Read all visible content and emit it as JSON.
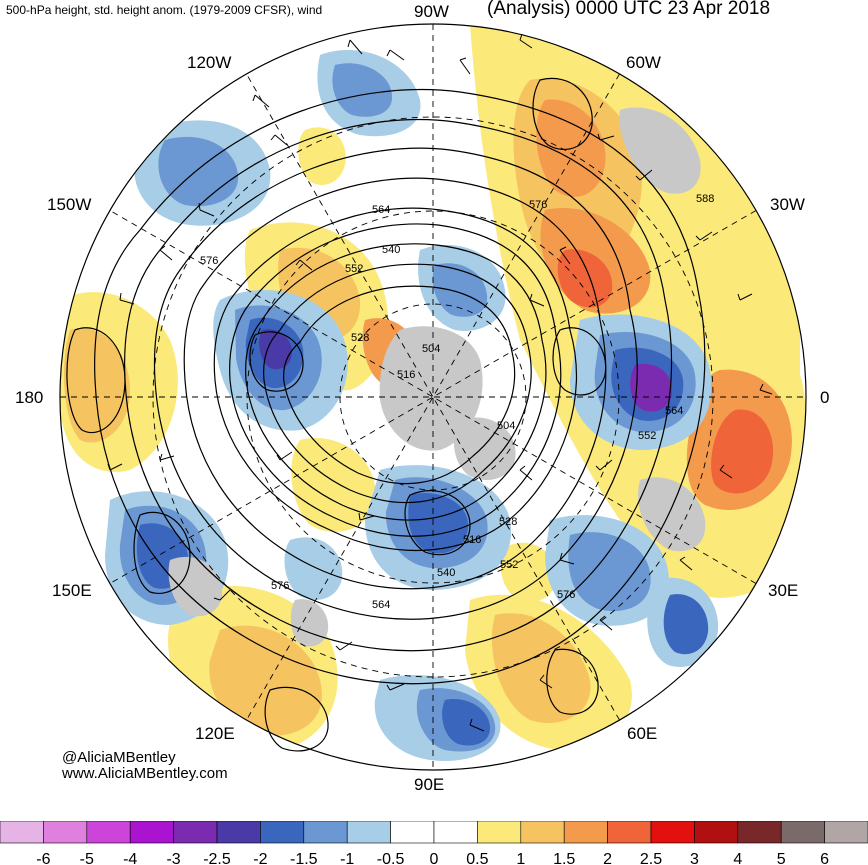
{
  "header": {
    "left_title": "500-hPa height, std. height anom. (1979-2009 CFSR), wind",
    "right_title": "(Analysis) 0000 UTC 23 Apr 2018"
  },
  "credits": {
    "line1": "@AliciaMBentley",
    "line2": "www.AliciaMBentley.com"
  },
  "longitude_labels": {
    "lon_90w": "90W",
    "lon_60w": "60W",
    "lon_30w": "30W",
    "lon_0": "0",
    "lon_30e": "30E",
    "lon_60e": "60E",
    "lon_90e": "90E",
    "lon_120e": "120E",
    "lon_150e": "150E",
    "lon_180": "180",
    "lon_150w": "150W",
    "lon_120w": "120W"
  },
  "contour_labels": [
    "504",
    "504",
    "516",
    "516",
    "528",
    "528",
    "540",
    "540",
    "552",
    "552",
    "552",
    "564",
    "564",
    "564",
    "576",
    "576",
    "576",
    "576",
    "588"
  ],
  "colorbar": {
    "ticks": [
      "-6",
      "-5",
      "-4",
      "-3",
      "-2.5",
      "-2",
      "-1.5",
      "-1",
      "-0.5",
      "0",
      "0.5",
      "1",
      "1.5",
      "2",
      "2.5",
      "3",
      "4",
      "5",
      "6"
    ],
    "colors": [
      "#e6b3e6",
      "#df80df",
      "#cc44d9",
      "#aa14d0",
      "#7b2bb0",
      "#4a3aa8",
      "#3a66be",
      "#6b97d2",
      "#a8cde6",
      "#ffffff",
      "#ffffff",
      "#fbe97a",
      "#f5c461",
      "#f39a4c",
      "#f0643a",
      "#e31010",
      "#b01010",
      "#782828",
      "#7a6a6a",
      "#b0a6a6"
    ]
  },
  "map_colors": {
    "neg_strong": "#4a3aa8",
    "neg_mid": "#3a66be",
    "neg_light": "#6b97d2",
    "neg_pale": "#a8cde6",
    "pos_pale": "#fbe97a",
    "pos_light": "#f5c461",
    "pos_mid": "#f39a4c",
    "pos_strong": "#f0643a",
    "land_gray": "#c8c8c8"
  }
}
